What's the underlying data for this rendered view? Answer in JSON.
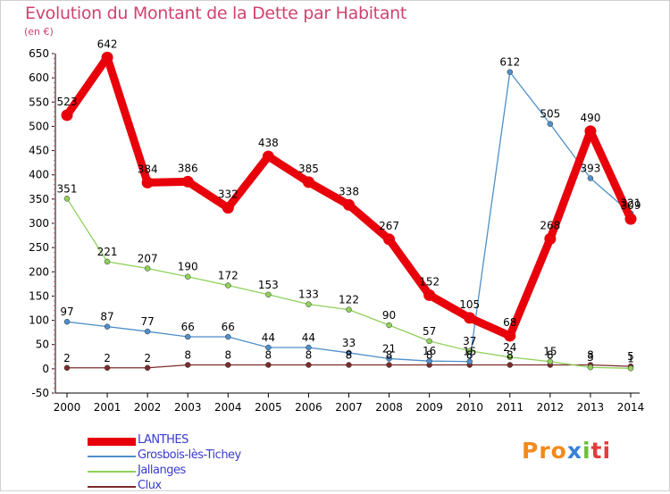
{
  "title": "Evolution du Montant de la Dette par Habitant",
  "unit": "(en €)",
  "logo": {
    "part1": "Pro",
    "part2": "x",
    "part3": "i",
    "part4": "ti"
  },
  "chart_data": {
    "type": "line",
    "title": "Evolution du Montant de la Dette par Habitant",
    "subtitle": "(en €)",
    "x": [
      2000,
      2001,
      2002,
      2003,
      2004,
      2005,
      2006,
      2007,
      2008,
      2009,
      2010,
      2011,
      2012,
      2013,
      2014
    ],
    "ylim": [
      -50,
      650
    ],
    "yticks": [
      -50,
      0,
      50,
      100,
      150,
      200,
      250,
      300,
      350,
      400,
      450,
      500,
      550,
      600,
      650
    ],
    "grid": false,
    "legend_position": "bottom-left",
    "series": [
      {
        "name": "LANTHES",
        "color": "#e8000b",
        "values": [
          523,
          642,
          384,
          386,
          332,
          438,
          385,
          338,
          267,
          152,
          105,
          68,
          268,
          490,
          309
        ],
        "labels": [
          "523",
          "642",
          "384",
          "386",
          "332",
          "438",
          "385",
          "338",
          "267",
          "152",
          "105",
          "68",
          "268",
          "490",
          "309"
        ]
      },
      {
        "name": "Grosbois-lès-Tichey",
        "color": "#4f8fc9",
        "values": [
          97,
          87,
          77,
          66,
          66,
          44,
          44,
          33,
          21,
          16,
          15,
          612,
          505,
          393,
          321
        ],
        "labels": [
          "97",
          "87",
          "77",
          "66",
          "66",
          "44",
          "44",
          "33",
          "21",
          "16",
          "15",
          "612",
          "505",
          "393",
          "321"
        ]
      },
      {
        "name": "Jallanges",
        "color": "#8fd15a",
        "values": [
          351,
          221,
          207,
          190,
          172,
          153,
          133,
          122,
          90,
          57,
          37,
          24,
          15,
          3,
          1
        ],
        "labels": [
          "351",
          "221",
          "207",
          "190",
          "172",
          "153",
          "133",
          "122",
          "90",
          "57",
          "37",
          "24",
          "15",
          "3",
          "1"
        ]
      },
      {
        "name": "Clux",
        "color": "#7a2b2b",
        "values": [
          2,
          2,
          2,
          8,
          8,
          8,
          8,
          8,
          8,
          8,
          8,
          8,
          8,
          8,
          5
        ],
        "labels": [
          "2",
          "2",
          "2",
          "8",
          "8",
          "8",
          "8",
          "8",
          "8",
          "8",
          "8",
          "8",
          "8",
          "8",
          "5"
        ]
      }
    ]
  }
}
